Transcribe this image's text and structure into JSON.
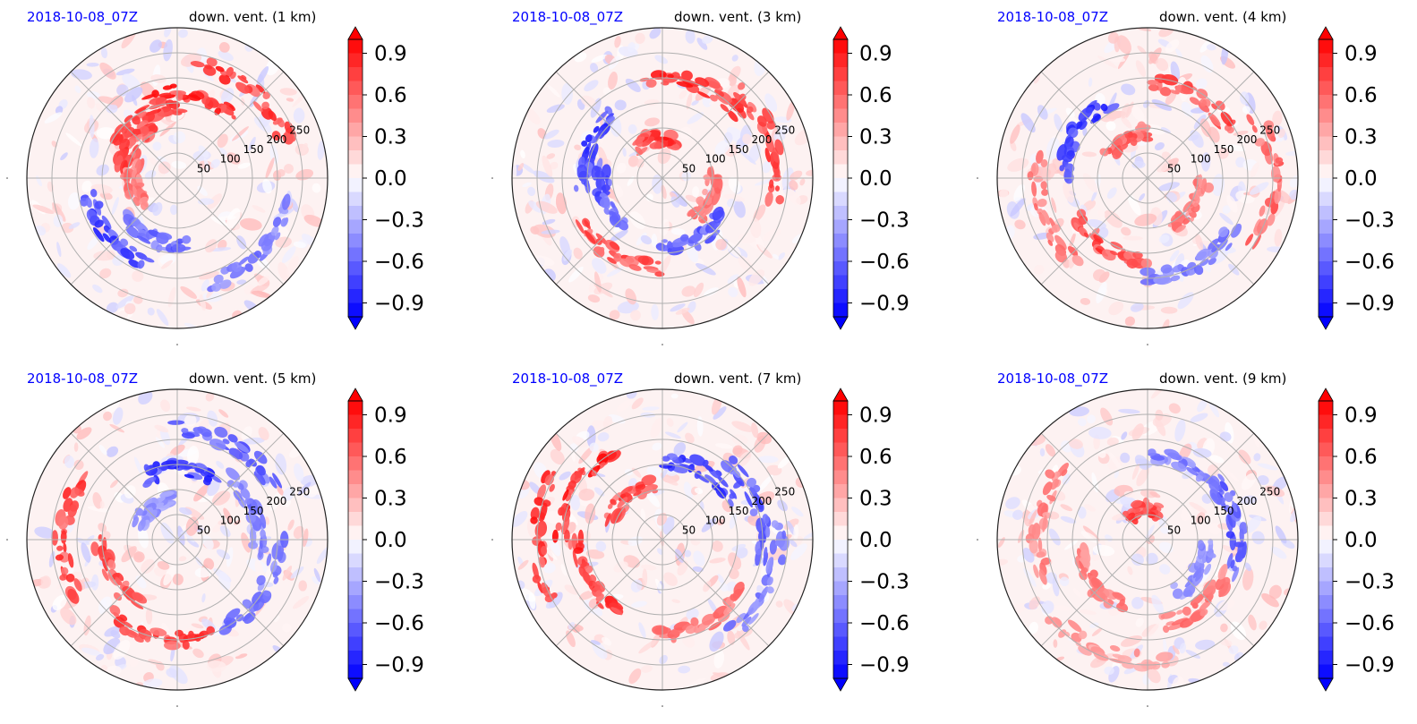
{
  "colors": {
    "date": "#0000ff",
    "title": "#000000",
    "neg_max": "#0000ff",
    "pos_max": "#ff0000",
    "grid": "#b0b0b0",
    "frame": "#222222"
  },
  "colorbar": {
    "ticks": [
      "0.9",
      "0.6",
      "0.3",
      "0.0",
      "−0.3",
      "−0.6",
      "−0.9"
    ],
    "tick_values": [
      0.9,
      0.6,
      0.3,
      0.0,
      -0.3,
      -0.6,
      -0.9
    ],
    "range": [
      -1.0,
      1.0
    ],
    "extend": "both"
  },
  "radial_ticks": [
    "50",
    "100",
    "150",
    "200",
    "250"
  ],
  "radial_tick_values": [
    50,
    100,
    150,
    200,
    250
  ],
  "radial_max": 300,
  "chart_data": [
    {
      "type": "heatmap",
      "projection": "polar",
      "date": "2018-10-08_07Z",
      "title": "down. vent. (1 km)",
      "features": [
        {
          "theta": 80,
          "r": 170,
          "sign": 1,
          "strength": 0.95
        },
        {
          "theta": 50,
          "r": 230,
          "sign": 1,
          "strength": 0.9
        },
        {
          "theta": 120,
          "r": 140,
          "sign": 1,
          "strength": 0.85
        },
        {
          "theta": 150,
          "r": 110,
          "sign": 1,
          "strength": 0.8
        },
        {
          "theta": 220,
          "r": 180,
          "sign": -1,
          "strength": 0.85
        },
        {
          "theta": 250,
          "r": 130,
          "sign": -1,
          "strength": 0.7
        },
        {
          "theta": 320,
          "r": 220,
          "sign": -1,
          "strength": 0.6
        },
        {
          "theta": 190,
          "r": 90,
          "sign": 1,
          "strength": 0.6
        }
      ]
    },
    {
      "type": "heatmap",
      "projection": "polar",
      "date": "2018-10-08_07Z",
      "title": "down. vent. (3 km)",
      "features": [
        {
          "theta": 70,
          "r": 200,
          "sign": 1,
          "strength": 0.9
        },
        {
          "theta": 100,
          "r": 80,
          "sign": 1,
          "strength": 0.9
        },
        {
          "theta": 20,
          "r": 230,
          "sign": 1,
          "strength": 0.85
        },
        {
          "theta": 160,
          "r": 160,
          "sign": -1,
          "strength": 0.85
        },
        {
          "theta": 200,
          "r": 120,
          "sign": -1,
          "strength": 0.75
        },
        {
          "theta": 240,
          "r": 180,
          "sign": 1,
          "strength": 0.8
        },
        {
          "theta": 300,
          "r": 140,
          "sign": -1,
          "strength": 0.7
        },
        {
          "theta": 340,
          "r": 100,
          "sign": 1,
          "strength": 0.6
        }
      ]
    },
    {
      "type": "heatmap",
      "projection": "polar",
      "date": "2018-10-08_07Z",
      "title": "down. vent. (4 km)",
      "features": [
        {
          "theta": 60,
          "r": 190,
          "sign": 1,
          "strength": 0.8
        },
        {
          "theta": 150,
          "r": 170,
          "sign": -1,
          "strength": 0.9
        },
        {
          "theta": 120,
          "r": 90,
          "sign": 1,
          "strength": 0.7
        },
        {
          "theta": 240,
          "r": 160,
          "sign": 1,
          "strength": 0.8
        },
        {
          "theta": 200,
          "r": 220,
          "sign": 1,
          "strength": 0.6
        },
        {
          "theta": 300,
          "r": 200,
          "sign": -1,
          "strength": 0.6
        },
        {
          "theta": 0,
          "r": 250,
          "sign": 1,
          "strength": 0.7
        },
        {
          "theta": 330,
          "r": 110,
          "sign": 1,
          "strength": 0.6
        }
      ]
    },
    {
      "type": "heatmap",
      "projection": "polar",
      "date": "2018-10-08_07Z",
      "title": "down. vent. (5 km)",
      "features": [
        {
          "theta": 90,
          "r": 140,
          "sign": -1,
          "strength": 0.9
        },
        {
          "theta": 60,
          "r": 220,
          "sign": -1,
          "strength": 0.7
        },
        {
          "theta": 180,
          "r": 230,
          "sign": 1,
          "strength": 0.85
        },
        {
          "theta": 210,
          "r": 150,
          "sign": 1,
          "strength": 0.8
        },
        {
          "theta": 260,
          "r": 200,
          "sign": 1,
          "strength": 0.85
        },
        {
          "theta": 20,
          "r": 160,
          "sign": -1,
          "strength": 0.6
        },
        {
          "theta": 330,
          "r": 200,
          "sign": -1,
          "strength": 0.6
        },
        {
          "theta": 130,
          "r": 80,
          "sign": -1,
          "strength": 0.5
        }
      ]
    },
    {
      "type": "heatmap",
      "projection": "polar",
      "date": "2018-10-08_07Z",
      "title": "down. vent. (7 km)",
      "features": [
        {
          "theta": 150,
          "r": 200,
          "sign": 1,
          "strength": 0.95
        },
        {
          "theta": 180,
          "r": 250,
          "sign": 1,
          "strength": 0.9
        },
        {
          "theta": 210,
          "r": 170,
          "sign": 1,
          "strength": 0.9
        },
        {
          "theta": 130,
          "r": 110,
          "sign": 1,
          "strength": 0.8
        },
        {
          "theta": 60,
          "r": 160,
          "sign": -1,
          "strength": 0.85
        },
        {
          "theta": 20,
          "r": 200,
          "sign": -1,
          "strength": 0.7
        },
        {
          "theta": 300,
          "r": 190,
          "sign": 1,
          "strength": 0.6
        },
        {
          "theta": 340,
          "r": 230,
          "sign": -1,
          "strength": 0.6
        }
      ]
    },
    {
      "type": "heatmap",
      "projection": "polar",
      "date": "2018-10-08_07Z",
      "title": "down. vent. (9 km)",
      "features": [
        {
          "theta": 170,
          "r": 220,
          "sign": 1,
          "strength": 0.55
        },
        {
          "theta": 220,
          "r": 140,
          "sign": 1,
          "strength": 0.6
        },
        {
          "theta": 100,
          "r": 60,
          "sign": 1,
          "strength": 0.8
        },
        {
          "theta": 10,
          "r": 180,
          "sign": -1,
          "strength": 0.75
        },
        {
          "theta": 60,
          "r": 170,
          "sign": -1,
          "strength": 0.6
        },
        {
          "theta": 310,
          "r": 170,
          "sign": 1,
          "strength": 0.6
        },
        {
          "theta": 250,
          "r": 240,
          "sign": 1,
          "strength": 0.45
        },
        {
          "theta": 330,
          "r": 120,
          "sign": -1,
          "strength": 0.5
        }
      ]
    }
  ]
}
